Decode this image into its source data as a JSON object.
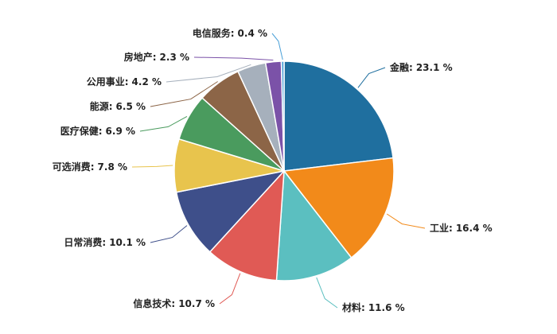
{
  "chart_data": {
    "type": "pie",
    "categories": [
      "金融:",
      "工业:",
      "材料:",
      "信息技术:",
      "日常消费:",
      "可选消费:",
      "医疗保健:",
      "能源:",
      "公用事业:",
      "房地产:",
      "电信服务:"
    ],
    "values": [
      23.1,
      16.4,
      11.6,
      10.7,
      10.1,
      7.8,
      6.9,
      6.5,
      4.2,
      2.3,
      0.4
    ],
    "value_labels": [
      "23.1 %",
      "16.4 %",
      "11.6 %",
      "10.7 %",
      "10.1 %",
      "7.8 %",
      "6.9 %",
      "6.5 %",
      "4.2 %",
      "2.3 %",
      "0.4 %"
    ],
    "colors": [
      "#1f6f9f",
      "#f28a1a",
      "#5bbfc0",
      "#e05a55",
      "#3e4f8a",
      "#e8c44d",
      "#4a9b5e",
      "#8c6547",
      "#a6b0bc",
      "#7b52a8",
      "#4aa0d8"
    ]
  }
}
